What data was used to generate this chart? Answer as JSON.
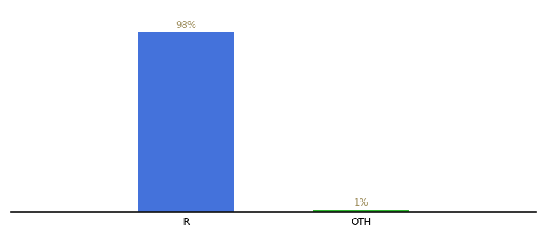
{
  "categories": [
    "IR",
    "OTH"
  ],
  "values": [
    98,
    1
  ],
  "bar_colors": [
    "#4472db",
    "#2db52d"
  ],
  "label_texts": [
    "98%",
    "1%"
  ],
  "label_color": "#a09060",
  "xlabel": "",
  "ylabel": "",
  "ylim": [
    0,
    105
  ],
  "background_color": "#ffffff",
  "axis_line_color": "#111111",
  "bar_width": 0.55,
  "label_fontsize": 8.5,
  "tick_fontsize": 8.5,
  "xlim": [
    -0.5,
    2.5
  ],
  "x_positions": [
    0.5,
    1.5
  ]
}
